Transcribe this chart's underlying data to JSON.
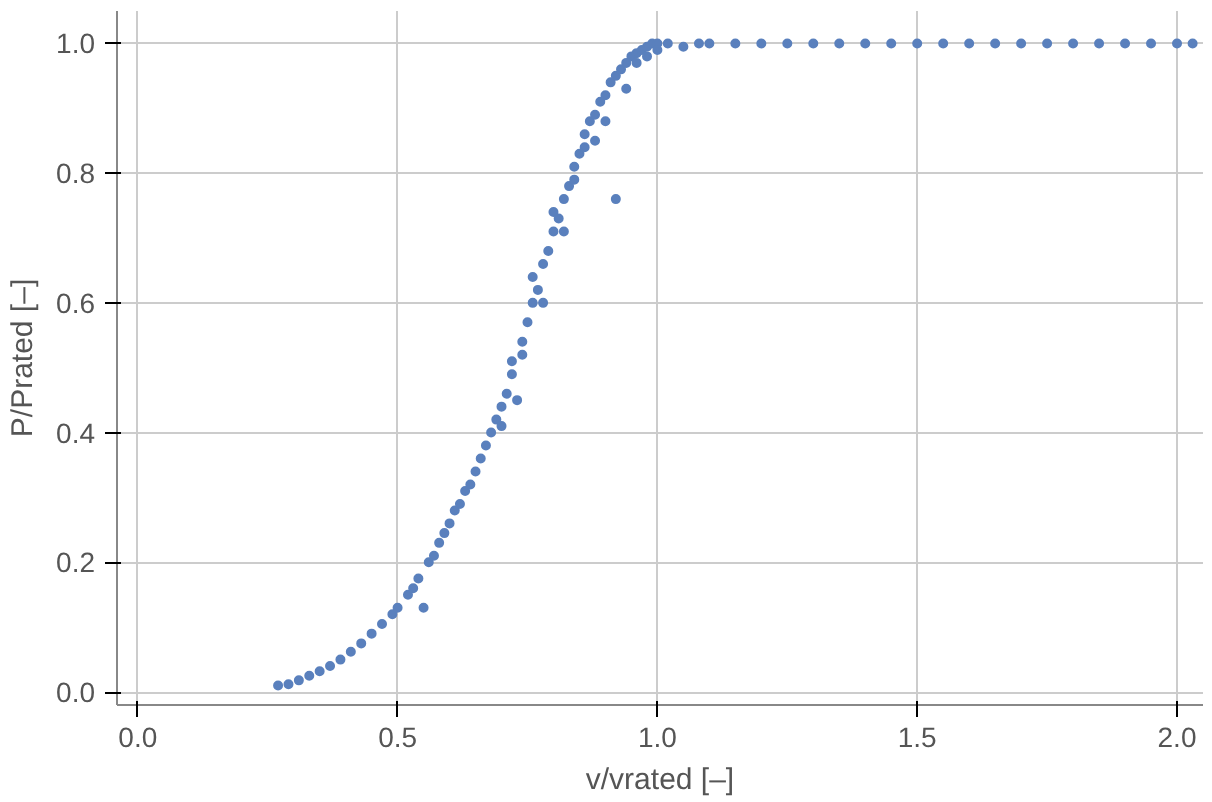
{
  "chart_data": {
    "type": "scatter",
    "xlabel": "v/vrated [–]",
    "ylabel": "P/Prated [–]",
    "x": [
      0.27,
      0.29,
      0.31,
      0.33,
      0.35,
      0.37,
      0.39,
      0.41,
      0.43,
      0.45,
      0.47,
      0.49,
      0.5,
      0.52,
      0.53,
      0.54,
      0.55,
      0.56,
      0.57,
      0.58,
      0.59,
      0.6,
      0.61,
      0.62,
      0.63,
      0.64,
      0.65,
      0.66,
      0.67,
      0.68,
      0.69,
      0.7,
      0.7,
      0.71,
      0.72,
      0.72,
      0.73,
      0.74,
      0.74,
      0.75,
      0.76,
      0.76,
      0.77,
      0.78,
      0.78,
      0.79,
      0.8,
      0.8,
      0.81,
      0.82,
      0.82,
      0.83,
      0.84,
      0.84,
      0.85,
      0.86,
      0.86,
      0.87,
      0.88,
      0.88,
      0.89,
      0.9,
      0.9,
      0.91,
      0.92,
      0.92,
      0.93,
      0.94,
      0.94,
      0.95,
      0.96,
      0.96,
      0.97,
      0.98,
      0.98,
      0.99,
      1.0,
      1.0,
      1.02,
      1.05,
      1.08,
      1.1,
      1.15,
      1.2,
      1.25,
      1.3,
      1.35,
      1.4,
      1.45,
      1.5,
      1.55,
      1.6,
      1.65,
      1.7,
      1.75,
      1.8,
      1.85,
      1.9,
      1.95,
      2.0,
      2.03
    ],
    "values": [
      0.01,
      0.012,
      0.018,
      0.025,
      0.032,
      0.04,
      0.05,
      0.062,
      0.075,
      0.09,
      0.105,
      0.12,
      0.13,
      0.15,
      0.16,
      0.175,
      0.13,
      0.2,
      0.21,
      0.23,
      0.245,
      0.26,
      0.28,
      0.29,
      0.31,
      0.32,
      0.34,
      0.36,
      0.38,
      0.4,
      0.42,
      0.44,
      0.41,
      0.46,
      0.49,
      0.51,
      0.45,
      0.54,
      0.52,
      0.57,
      0.6,
      0.64,
      0.62,
      0.66,
      0.6,
      0.68,
      0.71,
      0.74,
      0.73,
      0.76,
      0.71,
      0.78,
      0.81,
      0.79,
      0.83,
      0.86,
      0.84,
      0.88,
      0.89,
      0.85,
      0.91,
      0.92,
      0.88,
      0.94,
      0.95,
      0.76,
      0.96,
      0.97,
      0.93,
      0.98,
      0.985,
      0.97,
      0.99,
      0.995,
      0.98,
      1.0,
      1.0,
      0.99,
      1.0,
      0.995,
      1.0,
      1.0,
      1.0,
      1.0,
      1.0,
      1.0,
      1.0,
      1.0,
      1.0,
      1.0,
      1.0,
      1.0,
      1.0,
      1.0,
      1.0,
      1.0,
      1.0,
      1.0,
      1.0,
      1.0,
      1.0
    ],
    "color": "#5a80bd",
    "marker": "circle",
    "grid": true,
    "xlim": [
      -0.04,
      2.05
    ],
    "ylim": [
      -0.02,
      1.05
    ],
    "xticks": [
      {
        "value": 0,
        "label": "0.0"
      },
      0.5,
      {
        "value": 1,
        "label": "1.0"
      },
      1.5,
      {
        "value": 2,
        "label": "2.0"
      }
    ],
    "yticks": [
      {
        "value": 0,
        "label": "0.0"
      },
      0.2,
      0.4,
      0.6,
      0.8,
      {
        "value": 1,
        "label": "1.0"
      }
    ]
  }
}
